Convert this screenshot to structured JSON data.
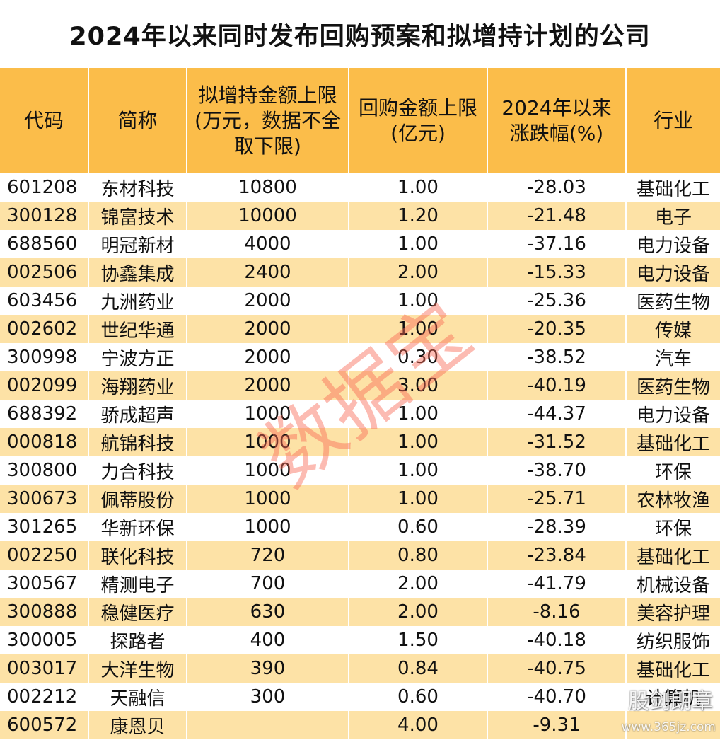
{
  "title": "2024年以来同时发布回购预案和拟增持计划的公司",
  "headers": {
    "code": "代码",
    "name": "简称",
    "increase": "拟增持金额上限(万元，数据不全取下限)",
    "buyback": "回购金额上限(亿元)",
    "change": "2024年以来涨跌幅(%)",
    "industry": "行业"
  },
  "rows": [
    {
      "code": "601208",
      "name": "东材科技",
      "increase": "10800",
      "buyback": "1.00",
      "change": "-28.03",
      "industry": "基础化工"
    },
    {
      "code": "300128",
      "name": "锦富技术",
      "increase": "10000",
      "buyback": "1.20",
      "change": "-21.48",
      "industry": "电子"
    },
    {
      "code": "688560",
      "name": "明冠新材",
      "increase": "4000",
      "buyback": "1.00",
      "change": "-37.16",
      "industry": "电力设备"
    },
    {
      "code": "002506",
      "name": "协鑫集成",
      "increase": "2400",
      "buyback": "2.00",
      "change": "-15.33",
      "industry": "电力设备"
    },
    {
      "code": "603456",
      "name": "九洲药业",
      "increase": "2000",
      "buyback": "1.00",
      "change": "-25.36",
      "industry": "医药生物"
    },
    {
      "code": "002602",
      "name": "世纪华通",
      "increase": "2000",
      "buyback": "1.00",
      "change": "-20.35",
      "industry": "传媒"
    },
    {
      "code": "300998",
      "name": "宁波方正",
      "increase": "2000",
      "buyback": "0.30",
      "change": "-38.52",
      "industry": "汽车"
    },
    {
      "code": "002099",
      "name": "海翔药业",
      "increase": "2000",
      "buyback": "3.00",
      "change": "-40.19",
      "industry": "医药生物"
    },
    {
      "code": "688392",
      "name": "骄成超声",
      "increase": "1000",
      "buyback": "1.00",
      "change": "-44.37",
      "industry": "电力设备"
    },
    {
      "code": "000818",
      "name": "航锦科技",
      "increase": "1000",
      "buyback": "1.00",
      "change": "-31.52",
      "industry": "基础化工"
    },
    {
      "code": "300800",
      "name": "力合科技",
      "increase": "1000",
      "buyback": "1.00",
      "change": "-38.70",
      "industry": "环保"
    },
    {
      "code": "300673",
      "name": "佩蒂股份",
      "increase": "1000",
      "buyback": "1.00",
      "change": "-25.71",
      "industry": "农林牧渔"
    },
    {
      "code": "301265",
      "name": "华新环保",
      "increase": "1000",
      "buyback": "0.60",
      "change": "-28.39",
      "industry": "环保"
    },
    {
      "code": "002250",
      "name": "联化科技",
      "increase": "720",
      "buyback": "0.80",
      "change": "-23.84",
      "industry": "基础化工"
    },
    {
      "code": "300567",
      "name": "精测电子",
      "increase": "700",
      "buyback": "2.00",
      "change": "-41.79",
      "industry": "机械设备"
    },
    {
      "code": "300888",
      "name": "稳健医疗",
      "increase": "630",
      "buyback": "2.00",
      "change": "-8.16",
      "industry": "美容护理"
    },
    {
      "code": "300005",
      "name": "探路者",
      "increase": "400",
      "buyback": "1.50",
      "change": "-40.18",
      "industry": "纺织服饰"
    },
    {
      "code": "003017",
      "name": "大洋生物",
      "increase": "390",
      "buyback": "0.84",
      "change": "-40.75",
      "industry": "基础化工"
    },
    {
      "code": "002212",
      "name": "天融信",
      "increase": "300",
      "buyback": "0.60",
      "change": "-40.70",
      "industry": "计算机"
    },
    {
      "code": "600572",
      "name": "康恩贝",
      "increase": "",
      "buyback": "4.00",
      "change": "-9.31",
      "industry": ""
    }
  ],
  "watermark": "数据宝",
  "brand": "股剑朗章",
  "brand_url": "www.365jz.com"
}
